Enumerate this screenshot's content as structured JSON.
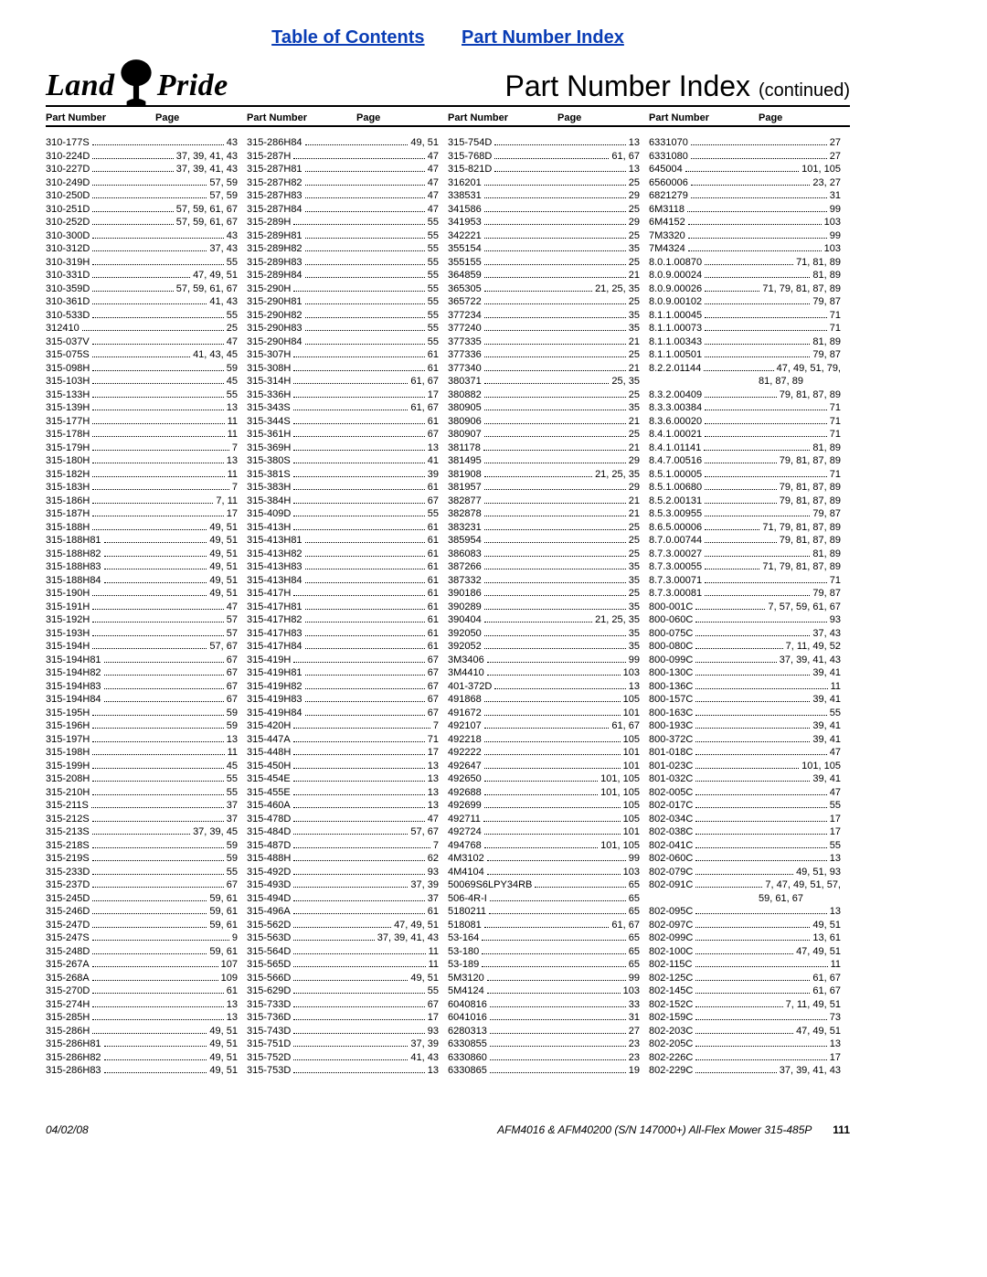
{
  "top_links": {
    "toc": "Table of Contents",
    "pni": "Part Number Index"
  },
  "logo": {
    "left": "Land",
    "right": "Pride"
  },
  "title": {
    "main": "Part Number Index",
    "cont": "(continued)"
  },
  "col_header": {
    "pn": "Part Number",
    "pg": "Page"
  },
  "footer": {
    "date": "04/02/08",
    "desc": "AFM4016 & AFM40200 (S/N 147000+) All-Flex Mower 315-485P",
    "page": "111"
  },
  "columns": [
    [
      {
        "pn": "310-177S",
        "pg": "43"
      },
      {
        "pn": "310-224D",
        "pg": "37, 39, 41, 43"
      },
      {
        "pn": "310-227D",
        "pg": "37, 39, 41, 43"
      },
      {
        "pn": "310-249D",
        "pg": "57, 59"
      },
      {
        "pn": "310-250D",
        "pg": "57, 59"
      },
      {
        "pn": "310-251D",
        "pg": "57, 59, 61, 67"
      },
      {
        "pn": "310-252D",
        "pg": "57, 59, 61, 67"
      },
      {
        "pn": "310-300D",
        "pg": "43"
      },
      {
        "pn": "310-312D",
        "pg": "37, 43"
      },
      {
        "pn": "310-319H",
        "pg": "55"
      },
      {
        "pn": "310-331D",
        "pg": "47, 49, 51"
      },
      {
        "pn": "310-359D",
        "pg": "57, 59, 61, 67"
      },
      {
        "pn": "310-361D",
        "pg": "41, 43"
      },
      {
        "pn": "310-533D",
        "pg": "55"
      },
      {
        "pn": "312410",
        "pg": "25"
      },
      {
        "pn": "315-037V",
        "pg": "47"
      },
      {
        "pn": "315-075S",
        "pg": "41, 43, 45"
      },
      {
        "pn": "315-098H",
        "pg": "59"
      },
      {
        "pn": "315-103H",
        "pg": "45"
      },
      {
        "pn": "315-133H",
        "pg": "55"
      },
      {
        "pn": "315-139H",
        "pg": "13"
      },
      {
        "pn": "315-177H",
        "pg": "11"
      },
      {
        "pn": "315-178H",
        "pg": "11"
      },
      {
        "pn": "315-179H",
        "pg": "7"
      },
      {
        "pn": "315-180H",
        "pg": "13"
      },
      {
        "pn": "315-182H",
        "pg": "11"
      },
      {
        "pn": "315-183H",
        "pg": "7"
      },
      {
        "pn": "315-186H",
        "pg": "7, 11"
      },
      {
        "pn": "315-187H",
        "pg": "17"
      },
      {
        "pn": "315-188H",
        "pg": "49, 51"
      },
      {
        "pn": "315-188H81",
        "pg": "49, 51"
      },
      {
        "pn": "315-188H82",
        "pg": "49, 51"
      },
      {
        "pn": "315-188H83",
        "pg": "49, 51"
      },
      {
        "pn": "315-188H84",
        "pg": "49, 51"
      },
      {
        "pn": "315-190H",
        "pg": "49, 51"
      },
      {
        "pn": "315-191H",
        "pg": "47"
      },
      {
        "pn": "315-192H",
        "pg": "57"
      },
      {
        "pn": "315-193H",
        "pg": "57"
      },
      {
        "pn": "315-194H",
        "pg": "57, 67"
      },
      {
        "pn": "315-194H81",
        "pg": "67"
      },
      {
        "pn": "315-194H82",
        "pg": "67"
      },
      {
        "pn": "315-194H83",
        "pg": "67"
      },
      {
        "pn": "315-194H84",
        "pg": "67"
      },
      {
        "pn": "315-195H",
        "pg": "59"
      },
      {
        "pn": "315-196H",
        "pg": "59"
      },
      {
        "pn": "315-197H",
        "pg": "13"
      },
      {
        "pn": "315-198H",
        "pg": "11"
      },
      {
        "pn": "315-199H",
        "pg": "45"
      },
      {
        "pn": "315-208H",
        "pg": "55"
      },
      {
        "pn": "315-210H",
        "pg": "55"
      },
      {
        "pn": "315-211S",
        "pg": "37"
      },
      {
        "pn": "315-212S",
        "pg": "37"
      },
      {
        "pn": "315-213S",
        "pg": "37, 39, 45"
      },
      {
        "pn": "315-218S",
        "pg": "59"
      },
      {
        "pn": "315-219S",
        "pg": "59"
      },
      {
        "pn": "315-233D",
        "pg": "55"
      },
      {
        "pn": "315-237D",
        "pg": "67"
      },
      {
        "pn": "315-245D",
        "pg": "59, 61"
      },
      {
        "pn": "315-246D",
        "pg": "59, 61"
      },
      {
        "pn": "315-247D",
        "pg": "59, 61"
      },
      {
        "pn": "315-247S",
        "pg": "9"
      },
      {
        "pn": "315-248D",
        "pg": "59, 61"
      },
      {
        "pn": "315-267A",
        "pg": "107"
      },
      {
        "pn": "315-268A",
        "pg": "109"
      },
      {
        "pn": "315-270D",
        "pg": "61"
      },
      {
        "pn": "315-274H",
        "pg": "13"
      },
      {
        "pn": "315-285H",
        "pg": "13"
      },
      {
        "pn": "315-286H",
        "pg": "49, 51"
      },
      {
        "pn": "315-286H81",
        "pg": "49, 51"
      },
      {
        "pn": "315-286H82",
        "pg": "49, 51"
      },
      {
        "pn": "315-286H83",
        "pg": "49, 51"
      }
    ],
    [
      {
        "pn": "315-286H84",
        "pg": "49, 51"
      },
      {
        "pn": "315-287H",
        "pg": "47"
      },
      {
        "pn": "315-287H81",
        "pg": "47"
      },
      {
        "pn": "315-287H82",
        "pg": "47"
      },
      {
        "pn": "315-287H83",
        "pg": "47"
      },
      {
        "pn": "315-287H84",
        "pg": "47"
      },
      {
        "pn": "315-289H",
        "pg": "55"
      },
      {
        "pn": "315-289H81",
        "pg": "55"
      },
      {
        "pn": "315-289H82",
        "pg": "55"
      },
      {
        "pn": "315-289H83",
        "pg": "55"
      },
      {
        "pn": "315-289H84",
        "pg": "55"
      },
      {
        "pn": "315-290H",
        "pg": "55"
      },
      {
        "pn": "315-290H81",
        "pg": "55"
      },
      {
        "pn": "315-290H82",
        "pg": "55"
      },
      {
        "pn": "315-290H83",
        "pg": "55"
      },
      {
        "pn": "315-290H84",
        "pg": "55"
      },
      {
        "pn": "315-307H",
        "pg": "61"
      },
      {
        "pn": "315-308H",
        "pg": "61"
      },
      {
        "pn": "315-314H",
        "pg": "61, 67"
      },
      {
        "pn": "315-336H",
        "pg": "17"
      },
      {
        "pn": "315-343S",
        "pg": "61, 67"
      },
      {
        "pn": "315-344S",
        "pg": "61"
      },
      {
        "pn": "315-361H",
        "pg": "67"
      },
      {
        "pn": "315-369H",
        "pg": "13"
      },
      {
        "pn": "315-380S",
        "pg": "41"
      },
      {
        "pn": "315-381S",
        "pg": "39"
      },
      {
        "pn": "315-383H",
        "pg": "61"
      },
      {
        "pn": "315-384H",
        "pg": "67"
      },
      {
        "pn": "315-409D",
        "pg": "55"
      },
      {
        "pn": "315-413H",
        "pg": "61"
      },
      {
        "pn": "315-413H81",
        "pg": "61"
      },
      {
        "pn": "315-413H82",
        "pg": "61"
      },
      {
        "pn": "315-413H83",
        "pg": "61"
      },
      {
        "pn": "315-413H84",
        "pg": "61"
      },
      {
        "pn": "315-417H",
        "pg": "61"
      },
      {
        "pn": "315-417H81",
        "pg": "61"
      },
      {
        "pn": "315-417H82",
        "pg": "61"
      },
      {
        "pn": "315-417H83",
        "pg": "61"
      },
      {
        "pn": "315-417H84",
        "pg": "61"
      },
      {
        "pn": "315-419H",
        "pg": "67"
      },
      {
        "pn": "315-419H81",
        "pg": "67"
      },
      {
        "pn": "315-419H82",
        "pg": "67"
      },
      {
        "pn": "315-419H83",
        "pg": "67"
      },
      {
        "pn": "315-419H84",
        "pg": "67"
      },
      {
        "pn": "315-420H",
        "pg": "7"
      },
      {
        "pn": "315-447A",
        "pg": "71"
      },
      {
        "pn": "315-448H",
        "pg": "17"
      },
      {
        "pn": "315-450H",
        "pg": "13"
      },
      {
        "pn": "315-454E",
        "pg": "13"
      },
      {
        "pn": "315-455E",
        "pg": "13"
      },
      {
        "pn": "315-460A",
        "pg": "13"
      },
      {
        "pn": "315-478D",
        "pg": "47"
      },
      {
        "pn": "315-484D",
        "pg": "57, 67"
      },
      {
        "pn": "315-487D",
        "pg": "7"
      },
      {
        "pn": "315-488H",
        "pg": "62"
      },
      {
        "pn": "315-492D",
        "pg": "93"
      },
      {
        "pn": "315-493D",
        "pg": "37, 39"
      },
      {
        "pn": "315-494D",
        "pg": "37"
      },
      {
        "pn": "315-496A",
        "pg": "61"
      },
      {
        "pn": "315-562D",
        "pg": "47, 49, 51"
      },
      {
        "pn": "315-563D",
        "pg": "37, 39, 41, 43"
      },
      {
        "pn": "315-564D",
        "pg": "11"
      },
      {
        "pn": "315-565D",
        "pg": "11"
      },
      {
        "pn": "315-566D",
        "pg": "49, 51"
      },
      {
        "pn": "315-629D",
        "pg": "55"
      },
      {
        "pn": "315-733D",
        "pg": "67"
      },
      {
        "pn": "315-736D",
        "pg": "17"
      },
      {
        "pn": "315-743D",
        "pg": "93"
      },
      {
        "pn": "315-751D",
        "pg": "37, 39"
      },
      {
        "pn": "315-752D",
        "pg": "41, 43"
      },
      {
        "pn": "315-753D",
        "pg": "13"
      }
    ],
    [
      {
        "pn": "315-754D",
        "pg": "13"
      },
      {
        "pn": "315-768D",
        "pg": "61, 67"
      },
      {
        "pn": "315-821D",
        "pg": "13"
      },
      {
        "pn": "316201",
        "pg": "25"
      },
      {
        "pn": "338531",
        "pg": "29"
      },
      {
        "pn": "341586",
        "pg": "25"
      },
      {
        "pn": "341953",
        "pg": "29"
      },
      {
        "pn": "342221",
        "pg": "25"
      },
      {
        "pn": "355154",
        "pg": "35"
      },
      {
        "pn": "355155",
        "pg": "25"
      },
      {
        "pn": "364859",
        "pg": "21"
      },
      {
        "pn": "365305",
        "pg": "21, 25, 35"
      },
      {
        "pn": "365722",
        "pg": "25"
      },
      {
        "pn": "377234",
        "pg": "35"
      },
      {
        "pn": "377240",
        "pg": "35"
      },
      {
        "pn": "377335",
        "pg": "21"
      },
      {
        "pn": "377336",
        "pg": "25"
      },
      {
        "pn": "377340",
        "pg": "21"
      },
      {
        "pn": "380371",
        "pg": "25, 35"
      },
      {
        "pn": "380882",
        "pg": "25"
      },
      {
        "pn": "380905",
        "pg": "35"
      },
      {
        "pn": "380906",
        "pg": "21"
      },
      {
        "pn": "380907",
        "pg": "25"
      },
      {
        "pn": "381178",
        "pg": "21"
      },
      {
        "pn": "381495",
        "pg": "29"
      },
      {
        "pn": "381908",
        "pg": "21, 25, 35"
      },
      {
        "pn": "381957",
        "pg": "29"
      },
      {
        "pn": "382877",
        "pg": "21"
      },
      {
        "pn": "382878",
        "pg": "21"
      },
      {
        "pn": "383231",
        "pg": "25"
      },
      {
        "pn": "385954",
        "pg": "25"
      },
      {
        "pn": "386083",
        "pg": "25"
      },
      {
        "pn": "387266",
        "pg": "35"
      },
      {
        "pn": "387332",
        "pg": "35"
      },
      {
        "pn": "390186",
        "pg": "25"
      },
      {
        "pn": "390289",
        "pg": "35"
      },
      {
        "pn": "390404",
        "pg": "21, 25, 35"
      },
      {
        "pn": "392050",
        "pg": "35"
      },
      {
        "pn": "392052",
        "pg": "35"
      },
      {
        "pn": "3M3406",
        "pg": "99"
      },
      {
        "pn": "3M4410",
        "pg": "103"
      },
      {
        "pn": "401-372D",
        "pg": "13"
      },
      {
        "pn": "491868",
        "pg": "105"
      },
      {
        "pn": "491672",
        "pg": "101"
      },
      {
        "pn": "492107",
        "pg": "61, 67"
      },
      {
        "pn": "492218",
        "pg": "105"
      },
      {
        "pn": "492222",
        "pg": "101"
      },
      {
        "pn": "492647",
        "pg": "101"
      },
      {
        "pn": "492650",
        "pg": "101, 105"
      },
      {
        "pn": "492688",
        "pg": "101, 105"
      },
      {
        "pn": "492699",
        "pg": "105"
      },
      {
        "pn": "492711",
        "pg": "105"
      },
      {
        "pn": "492724",
        "pg": "101"
      },
      {
        "pn": "494768",
        "pg": "101, 105"
      },
      {
        "pn": "4M3102",
        "pg": "99"
      },
      {
        "pn": "4M4104",
        "pg": "103"
      },
      {
        "pn": "50069S6LPY34RB",
        "pg": "65"
      },
      {
        "pn": "506-4R-I",
        "pg": "65"
      },
      {
        "pn": "5180211",
        "pg": "65"
      },
      {
        "pn": "518081",
        "pg": "61, 67"
      },
      {
        "pn": "53-164",
        "pg": "65"
      },
      {
        "pn": "53-180",
        "pg": "65"
      },
      {
        "pn": "53-189",
        "pg": "65"
      },
      {
        "pn": "5M3120",
        "pg": "99"
      },
      {
        "pn": "5M4124",
        "pg": "103"
      },
      {
        "pn": "6040816",
        "pg": "33"
      },
      {
        "pn": "6041016",
        "pg": "31"
      },
      {
        "pn": "6280313",
        "pg": "27"
      },
      {
        "pn": "6330855",
        "pg": "23"
      },
      {
        "pn": "6330860",
        "pg": "23"
      },
      {
        "pn": "6330865",
        "pg": "19"
      }
    ],
    [
      {
        "pn": "6331070",
        "pg": "27"
      },
      {
        "pn": "6331080",
        "pg": "27"
      },
      {
        "pn": "645004",
        "pg": "101, 105"
      },
      {
        "pn": "6560006",
        "pg": "23, 27"
      },
      {
        "pn": "6821279",
        "pg": "31"
      },
      {
        "pn": "6M3118",
        "pg": "99"
      },
      {
        "pn": "6M4152",
        "pg": "103"
      },
      {
        "pn": "7M3320",
        "pg": "99"
      },
      {
        "pn": "7M4324",
        "pg": "103"
      },
      {
        "pn": "8.0.1.00870",
        "pg": "71, 81, 89"
      },
      {
        "pn": "8.0.9.00024",
        "pg": "81, 89"
      },
      {
        "pn": "8.0.9.00026",
        "pg": "71, 79, 81, 87, 89"
      },
      {
        "pn": "8.0.9.00102",
        "pg": "79, 87"
      },
      {
        "pn": "8.1.1.00045",
        "pg": "71"
      },
      {
        "pn": "8.1.1.00073",
        "pg": "71"
      },
      {
        "pn": "8.1.1.00343",
        "pg": "81, 89"
      },
      {
        "pn": "8.1.1.00501",
        "pg": "79, 87"
      },
      {
        "pn": "8.2.2.01144",
        "pg": "47, 49, 51, 79,"
      },
      {
        "wrap": true,
        "pg": "81, 87, 89"
      },
      {
        "pn": "8.3.2.00409",
        "pg": "79, 81, 87, 89"
      },
      {
        "pn": "8.3.3.00384",
        "pg": "71"
      },
      {
        "pn": "8.3.6.00020",
        "pg": "71"
      },
      {
        "pn": "8.4.1.00021",
        "pg": "71"
      },
      {
        "pn": "8.4.1.01141",
        "pg": "81, 89"
      },
      {
        "pn": "8.4.7.00516",
        "pg": "79, 81, 87, 89"
      },
      {
        "pn": "8.5.1.00005",
        "pg": "71"
      },
      {
        "pn": "8.5.1.00680",
        "pg": "79, 81, 87, 89"
      },
      {
        "pn": "8.5.2.00131",
        "pg": "79, 81, 87, 89"
      },
      {
        "pn": "8.5.3.00955",
        "pg": "79, 87"
      },
      {
        "pn": "8.6.5.00006",
        "pg": "71, 79, 81, 87, 89"
      },
      {
        "pn": "8.7.0.00744",
        "pg": "79, 81, 87, 89"
      },
      {
        "pn": "8.7.3.00027",
        "pg": "81, 89"
      },
      {
        "pn": "8.7.3.00055",
        "pg": "71, 79, 81, 87, 89"
      },
      {
        "pn": "8.7.3.00071",
        "pg": "71"
      },
      {
        "pn": "8.7.3.00081",
        "pg": "79, 87"
      },
      {
        "pn": "800-001C",
        "pg": "7, 57, 59, 61, 67"
      },
      {
        "pn": "800-060C",
        "pg": "93"
      },
      {
        "pn": "800-075C",
        "pg": "37, 43"
      },
      {
        "pn": "800-080C",
        "pg": "7, 11, 49, 52"
      },
      {
        "pn": "800-099C",
        "pg": "37, 39, 41, 43"
      },
      {
        "pn": "800-130C",
        "pg": "39, 41"
      },
      {
        "pn": "800-136C",
        "pg": "11"
      },
      {
        "pn": "800-157C",
        "pg": "39, 41"
      },
      {
        "pn": "800-163C",
        "pg": "55"
      },
      {
        "pn": "800-193C",
        "pg": "39, 41"
      },
      {
        "pn": "800-372C",
        "pg": "39, 41"
      },
      {
        "pn": "801-018C",
        "pg": "47"
      },
      {
        "pn": "801-023C",
        "pg": "101, 105"
      },
      {
        "pn": "801-032C",
        "pg": "39, 41"
      },
      {
        "pn": "802-005C",
        "pg": "47"
      },
      {
        "pn": "802-017C",
        "pg": "55"
      },
      {
        "pn": "802-034C",
        "pg": "17"
      },
      {
        "pn": "802-038C",
        "pg": "17"
      },
      {
        "pn": "802-041C",
        "pg": "55"
      },
      {
        "pn": "802-060C",
        "pg": "13"
      },
      {
        "pn": "802-079C",
        "pg": "49, 51, 93"
      },
      {
        "pn": "802-091C",
        "pg": "7, 47, 49, 51, 57,"
      },
      {
        "wrap": true,
        "pg": "59, 61, 67"
      },
      {
        "pn": "802-095C",
        "pg": "13"
      },
      {
        "pn": "802-097C",
        "pg": "49, 51"
      },
      {
        "pn": "802-099C",
        "pg": "13, 61"
      },
      {
        "pn": "802-100C",
        "pg": "47, 49, 51"
      },
      {
        "pn": "802-115C",
        "pg": "11"
      },
      {
        "pn": "802-125C",
        "pg": "61, 67"
      },
      {
        "pn": "802-145C",
        "pg": "61, 67"
      },
      {
        "pn": "802-152C",
        "pg": "7, 11, 49, 51"
      },
      {
        "pn": "802-159C",
        "pg": "73"
      },
      {
        "pn": "802-203C",
        "pg": "47, 49, 51"
      },
      {
        "pn": "802-205C",
        "pg": "13"
      },
      {
        "pn": "802-226C",
        "pg": "17"
      },
      {
        "pn": "802-229C",
        "pg": "37, 39, 41, 43"
      }
    ]
  ]
}
